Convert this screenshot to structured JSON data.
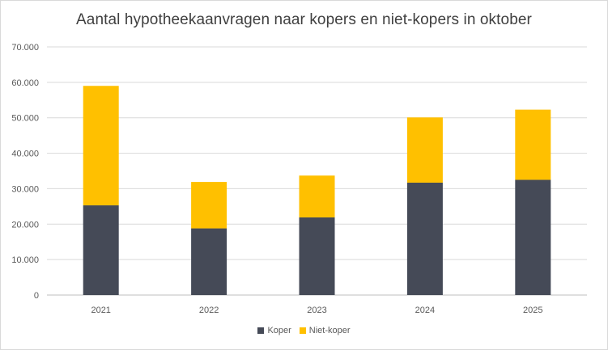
{
  "chart_data": {
    "type": "bar",
    "stacked": true,
    "title": "Aantal hypotheekaanvragen naar kopers en niet-kopers in oktober",
    "xlabel": "",
    "ylabel": "",
    "categories": [
      "2021",
      "2022",
      "2023",
      "2024",
      "2025"
    ],
    "series": [
      {
        "name": "Koper",
        "color": "#454a57",
        "values": [
          25300,
          18800,
          21900,
          31700,
          32500
        ]
      },
      {
        "name": "Niet-koper",
        "color": "#ffc000",
        "values": [
          33700,
          13100,
          11800,
          18400,
          19800
        ]
      }
    ],
    "ylim": [
      0,
      70000
    ],
    "yticks": [
      {
        "value": 0,
        "label": "0"
      },
      {
        "value": 10000,
        "label": "10.000"
      },
      {
        "value": 20000,
        "label": "20.000"
      },
      {
        "value": 30000,
        "label": "30.000"
      },
      {
        "value": 40000,
        "label": "40.000"
      },
      {
        "value": 50000,
        "label": "50.000"
      },
      {
        "value": 60000,
        "label": "60.000"
      },
      {
        "value": 70000,
        "label": "70.000"
      }
    ],
    "grid": true,
    "legend_position": "bottom"
  }
}
